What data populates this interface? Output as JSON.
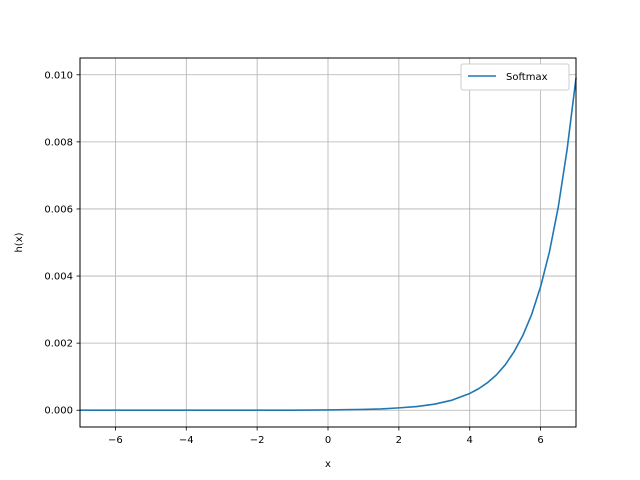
{
  "chart_data": {
    "type": "line",
    "title": "",
    "xlabel": "x",
    "ylabel": "h(x)",
    "xlim": [
      -7,
      7
    ],
    "ylim": [
      -0.0005,
      0.0105
    ],
    "x_ticks": [
      -6,
      -4,
      -2,
      0,
      2,
      4,
      6
    ],
    "x_tick_labels": [
      "−6",
      "−4",
      "−2",
      "0",
      "2",
      "4",
      "6"
    ],
    "y_ticks": [
      0.0,
      0.002,
      0.004,
      0.006,
      0.008,
      0.01
    ],
    "y_tick_labels": [
      "0.000",
      "0.002",
      "0.004",
      "0.006",
      "0.008",
      "0.010"
    ],
    "grid": true,
    "legend_position": "top-right",
    "series": [
      {
        "name": "Softmax",
        "color": "#1f77b4",
        "x": [
          -7,
          -6,
          -5,
          -4,
          -3,
          -2,
          -1,
          0,
          0.5,
          1,
          1.5,
          2,
          2.5,
          3,
          3.5,
          4,
          4.25,
          4.5,
          4.75,
          5,
          5.25,
          5.5,
          5.75,
          6,
          6.25,
          6.5,
          6.75,
          7
        ],
        "y": [
          0.0,
          0.0,
          0.0,
          0.0,
          0.0,
          0.0,
          0.0,
          9e-06,
          1.5e-05,
          2.5e-05,
          4e-05,
          7e-05,
          0.00011,
          0.00018,
          0.0003,
          0.0005,
          0.00064,
          0.00082,
          0.00105,
          0.00135,
          0.00174,
          0.00223,
          0.00286,
          0.00368,
          0.00472,
          0.00606,
          0.00778,
          0.0099
        ]
      }
    ]
  }
}
